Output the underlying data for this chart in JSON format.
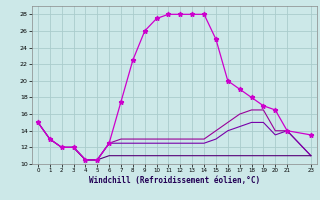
{
  "xlabel": "Windchill (Refroidissement éolien,°C)",
  "background_color": "#cce8e8",
  "grid_color": "#aacccc",
  "line_color1": "#cc00cc",
  "line_color2": "#990099",
  "line_color3": "#7700aa",
  "line_color4": "#550077",
  "xlim": [
    -0.5,
    23.5
  ],
  "ylim": [
    10,
    29
  ],
  "xticks": [
    0,
    1,
    2,
    3,
    4,
    5,
    6,
    7,
    8,
    9,
    10,
    11,
    12,
    13,
    14,
    15,
    16,
    17,
    18,
    19,
    20,
    21,
    23
  ],
  "yticks": [
    10,
    12,
    14,
    16,
    18,
    20,
    22,
    24,
    26,
    28
  ],
  "series1_x": [
    0,
    1,
    2,
    3,
    4,
    5,
    6,
    7,
    8,
    9,
    10,
    11,
    12,
    13,
    14,
    15,
    16,
    17,
    18,
    19,
    20,
    21,
    23
  ],
  "series1_y": [
    15,
    13,
    12,
    12,
    10.5,
    10.5,
    12.5,
    17.5,
    22.5,
    26,
    27.5,
    28,
    28,
    28,
    28,
    25,
    20,
    19,
    18,
    17,
    16.5,
    14,
    13.5
  ],
  "series2_x": [
    0,
    1,
    2,
    3,
    4,
    5,
    6,
    7,
    8,
    9,
    10,
    11,
    12,
    13,
    14,
    15,
    16,
    17,
    18,
    19,
    20,
    21,
    23
  ],
  "series2_y": [
    15,
    13,
    12,
    12,
    10.5,
    10.5,
    12.5,
    13,
    13,
    13,
    13,
    13,
    13,
    13,
    13,
    14,
    15,
    16,
    16.5,
    16.5,
    14,
    14,
    11
  ],
  "series3_x": [
    0,
    1,
    2,
    3,
    4,
    5,
    6,
    7,
    8,
    9,
    10,
    11,
    12,
    13,
    14,
    15,
    16,
    17,
    18,
    19,
    20,
    21,
    23
  ],
  "series3_y": [
    15,
    13,
    12,
    12,
    10.5,
    10.5,
    12.5,
    12.5,
    12.5,
    12.5,
    12.5,
    12.5,
    12.5,
    12.5,
    12.5,
    13,
    14,
    14.5,
    15,
    15,
    13.5,
    14,
    11
  ],
  "series4_x": [
    2,
    3,
    4,
    5,
    6,
    7,
    8,
    9,
    10,
    11,
    12,
    13,
    14,
    15,
    16,
    17,
    18,
    19,
    20,
    21,
    23
  ],
  "series4_y": [
    12,
    12,
    10.5,
    10.5,
    11,
    11,
    11,
    11,
    11,
    11,
    11,
    11,
    11,
    11,
    11,
    11,
    11,
    11,
    11,
    11,
    11
  ]
}
